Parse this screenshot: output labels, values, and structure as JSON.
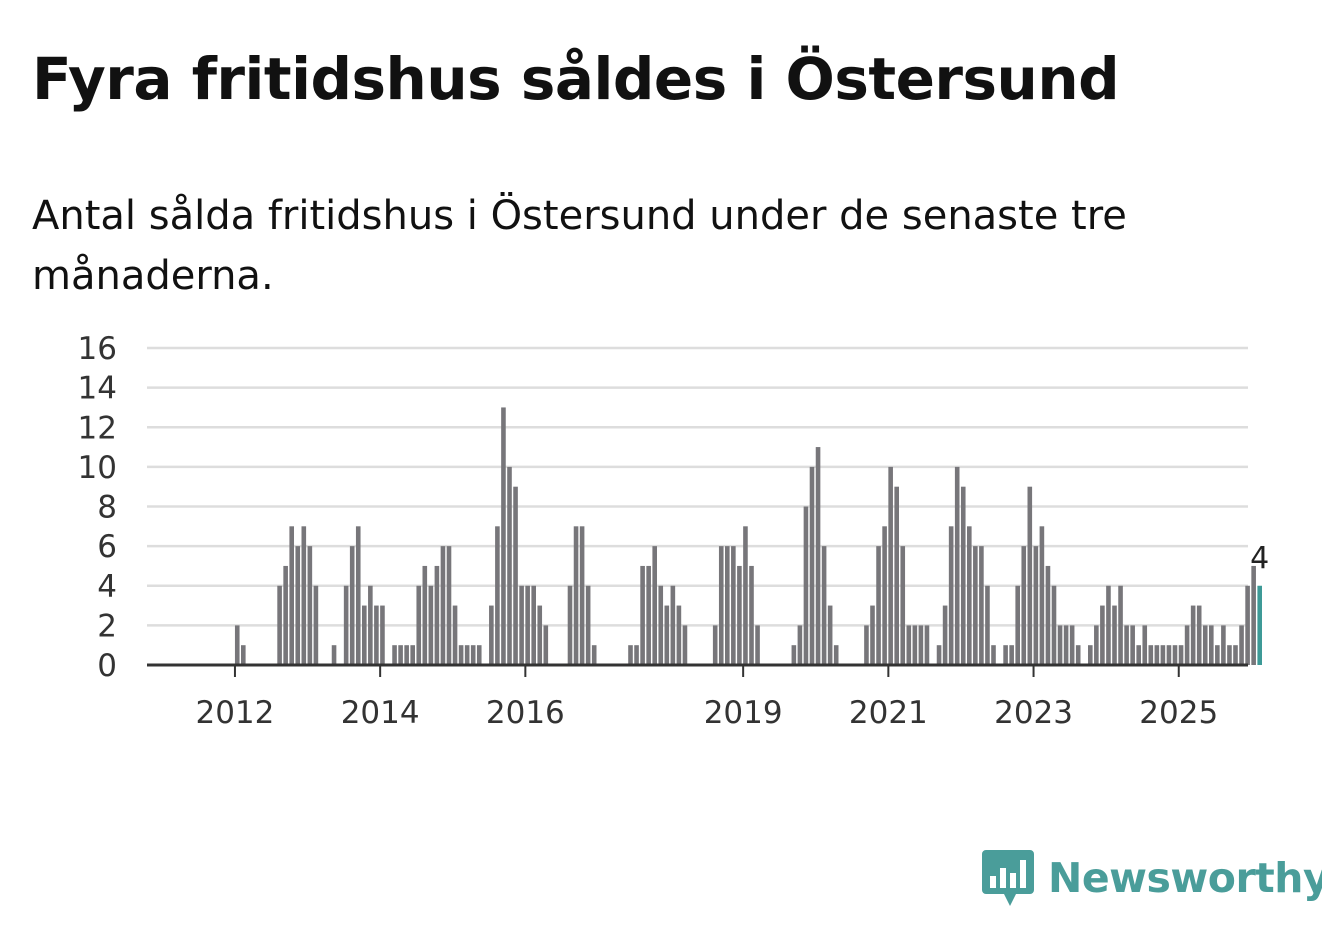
{
  "header": {
    "title": "Fyra fritidshus såldes i Östersund",
    "subtitle": "Antal sålda fritidshus i Östersund under de senaste tre månaderna."
  },
  "logo": {
    "text": "Newsworthy",
    "icon": "bar-chart-speech-bubble-icon"
  },
  "colors": {
    "bar": "#77767a",
    "highlight": "#3d9a97",
    "grid": "#dddddd",
    "axis": "#333333",
    "brand": "#4a9d9a"
  },
  "chart_data": {
    "type": "bar",
    "title": "Fyra fritidshus såldes i Östersund",
    "subtitle": "Antal sålda fritidshus i Östersund under de senaste tre månaderna.",
    "xlabel": "",
    "ylabel": "",
    "ylim": [
      0,
      16
    ],
    "yticks": [
      0,
      2,
      4,
      6,
      8,
      10,
      12,
      14,
      16
    ],
    "xticks": [
      {
        "label": "2012",
        "year": 2012
      },
      {
        "label": "2014",
        "year": 2014
      },
      {
        "label": "2016",
        "year": 2016
      },
      {
        "label": "2019",
        "year": 2019
      },
      {
        "label": "2021",
        "year": 2021
      },
      {
        "label": "2023",
        "year": 2023
      },
      {
        "label": "2025",
        "year": 2025
      }
    ],
    "start": {
      "year": 2011,
      "month": 4
    },
    "grid": true,
    "highlight_last": true,
    "last_label": "4",
    "values": [
      0,
      0,
      0,
      0,
      0,
      0,
      0,
      0,
      0,
      2,
      1,
      0,
      0,
      0,
      0,
      0,
      4,
      5,
      7,
      6,
      7,
      6,
      4,
      0,
      0,
      1,
      0,
      4,
      6,
      7,
      3,
      4,
      3,
      3,
      0,
      1,
      1,
      1,
      1,
      4,
      5,
      4,
      5,
      6,
      6,
      3,
      1,
      1,
      1,
      1,
      0,
      3,
      7,
      13,
      10,
      9,
      4,
      4,
      4,
      3,
      2,
      0,
      0,
      0,
      4,
      7,
      7,
      4,
      1,
      0,
      0,
      0,
      0,
      0,
      1,
      1,
      5,
      5,
      6,
      4,
      3,
      4,
      3,
      2,
      0,
      0,
      0,
      0,
      2,
      6,
      6,
      6,
      5,
      7,
      5,
      2,
      0,
      0,
      0,
      0,
      0,
      1,
      2,
      8,
      10,
      11,
      6,
      3,
      1,
      0,
      0,
      0,
      0,
      2,
      3,
      6,
      7,
      10,
      9,
      6,
      2,
      2,
      2,
      2,
      0,
      1,
      3,
      7,
      10,
      9,
      7,
      6,
      6,
      4,
      1,
      0,
      1,
      1,
      4,
      6,
      9,
      6,
      7,
      5,
      4,
      2,
      2,
      2,
      1,
      0,
      1,
      2,
      3,
      4,
      3,
      4,
      2,
      2,
      1,
      2,
      1,
      1,
      1,
      1,
      1,
      1,
      2,
      3,
      3,
      2,
      2,
      1,
      2,
      1,
      1,
      2,
      4,
      5,
      4
    ]
  }
}
